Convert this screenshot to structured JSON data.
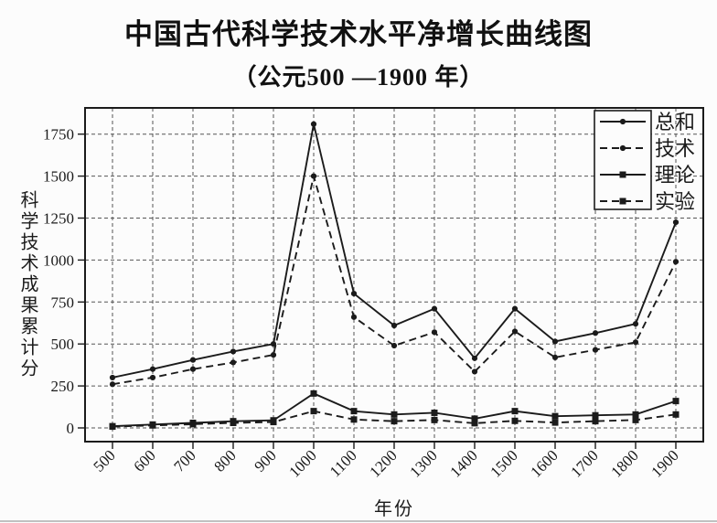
{
  "chart_data": {
    "type": "line",
    "title": "中国古代科学技术水平净增长曲线图",
    "subtitle": "（公元500 —1900 年）",
    "xlabel": "年份",
    "ylabel": "科学技术成果累计分",
    "x": [
      500,
      600,
      700,
      800,
      900,
      1000,
      1100,
      1200,
      1300,
      1400,
      1500,
      1600,
      1700,
      1800,
      1900
    ],
    "x_tick_labels": [
      "500",
      "600",
      "700",
      "800",
      "900",
      "1000",
      "1100",
      "1200",
      "1300",
      "1400",
      "1500",
      "1600",
      "1700",
      "1800",
      "1900"
    ],
    "y_ticks": [
      0,
      250,
      500,
      750,
      1000,
      1250,
      1500,
      1750
    ],
    "ylim": [
      -80,
      1900
    ],
    "grid": "dashed gridlines, vertical every 100 years, horizontal every 250 points",
    "legend_position": "inset box at top-right, labels to the right of box",
    "series": [
      {
        "name": "总和",
        "line_style": "solid",
        "marker": "dot",
        "values": [
          300,
          350,
          405,
          455,
          500,
          1810,
          800,
          610,
          710,
          415,
          710,
          515,
          565,
          620,
          1225
        ]
      },
      {
        "name": "技术",
        "line_style": "dashed",
        "marker": "dot",
        "values": [
          260,
          300,
          350,
          390,
          435,
          1500,
          660,
          490,
          570,
          335,
          575,
          420,
          465,
          510,
          990
        ]
      },
      {
        "name": "理论",
        "line_style": "solid",
        "marker": "square",
        "values": [
          10,
          20,
          30,
          40,
          45,
          205,
          100,
          80,
          90,
          55,
          100,
          70,
          75,
          80,
          160
        ]
      },
      {
        "name": "实验",
        "line_style": "dashed",
        "marker": "square",
        "values": [
          8,
          15,
          22,
          30,
          35,
          100,
          50,
          40,
          47,
          28,
          42,
          32,
          40,
          47,
          80
        ]
      }
    ],
    "colors": {
      "ink": "#1b1b1b",
      "background": "#fcfcfc",
      "grid": "#555555"
    }
  }
}
